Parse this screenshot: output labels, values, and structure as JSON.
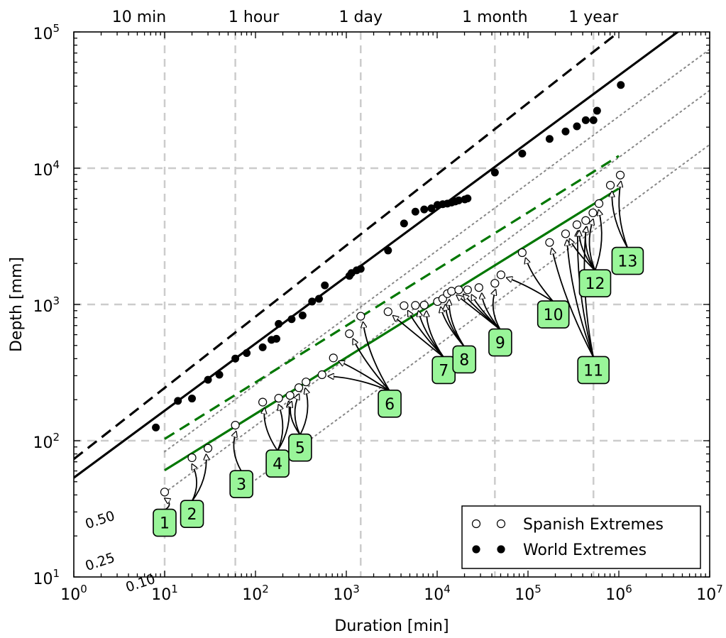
{
  "chart_data": {
    "type": "scatter",
    "xlabel": "Duration [min]",
    "ylabel": "Depth [mm]",
    "xscale": "log",
    "yscale": "log",
    "xlim": [
      1,
      10000000
    ],
    "ylim": [
      10,
      100000
    ],
    "x_ticks": [
      {
        "base": "10",
        "exp": "0"
      },
      {
        "base": "10",
        "exp": "1"
      },
      {
        "base": "10",
        "exp": "2"
      },
      {
        "base": "10",
        "exp": "3"
      },
      {
        "base": "10",
        "exp": "4"
      },
      {
        "base": "10",
        "exp": "5"
      },
      {
        "base": "10",
        "exp": "6"
      },
      {
        "base": "10",
        "exp": "7"
      }
    ],
    "y_ticks": [
      {
        "base": "10",
        "exp": "1"
      },
      {
        "base": "10",
        "exp": "2"
      },
      {
        "base": "10",
        "exp": "3"
      },
      {
        "base": "10",
        "exp": "4"
      },
      {
        "base": "10",
        "exp": "5"
      }
    ],
    "top_markers": [
      {
        "label": "10 min",
        "x": 10
      },
      {
        "label": "1 hour",
        "x": 60
      },
      {
        "label": "1 day",
        "x": 1440
      },
      {
        "label": "1 month",
        "x": 43200
      },
      {
        "label": "1 year",
        "x": 525600
      }
    ],
    "grid": "dashed at decades and duration markers",
    "legend": {
      "position": "bottom-right",
      "entries": [
        {
          "label": "Spanish Extremes",
          "marker": "open-circle"
        },
        {
          "label": "World Extremes",
          "marker": "filled-circle"
        }
      ]
    },
    "colors": {
      "world": "#000000",
      "spanish_fit": "#007700",
      "box_fill": "#99f599",
      "grid": "#cccccc",
      "ref_lines": "#888888"
    },
    "reference_lines": [
      {
        "label": "0.50",
        "fraction": 0.5
      },
      {
        "label": "0.25",
        "fraction": 0.25
      },
      {
        "label": "0.10",
        "fraction": 0.1
      }
    ],
    "fit_lines": [
      {
        "series": "World Extremes",
        "style": "solid",
        "color": "#000000",
        "x": [
          1,
          10000000
        ],
        "y": [
          53.5,
          149000
        ]
      },
      {
        "series": "World Extremes",
        "style": "dashed",
        "color": "#000000",
        "x": [
          1,
          1000000
        ],
        "y": [
          73.3,
          100000
        ]
      },
      {
        "series": "Spanish Extremes",
        "style": "solid",
        "color": "#007700",
        "x": [
          10,
          1000000
        ],
        "y": [
          60.7,
          7100
        ]
      },
      {
        "series": "Spanish Extremes",
        "style": "dashed",
        "color": "#007700",
        "x": [
          10,
          1000000
        ],
        "y": [
          103,
          12300
        ]
      }
    ],
    "series": [
      {
        "name": "World Extremes",
        "marker": "filled-circle",
        "points": [
          [
            8,
            125
          ],
          [
            14,
            196
          ],
          [
            20,
            204
          ],
          [
            30,
            280
          ],
          [
            40,
            305
          ],
          [
            60,
            401
          ],
          [
            80,
            440
          ],
          [
            120,
            485
          ],
          [
            150,
            550
          ],
          [
            170,
            560
          ],
          [
            180,
            720
          ],
          [
            250,
            780
          ],
          [
            330,
            830
          ],
          [
            420,
            1050
          ],
          [
            500,
            1100
          ],
          [
            580,
            1380
          ],
          [
            1080,
            1620
          ],
          [
            1140,
            1700
          ],
          [
            1300,
            1780
          ],
          [
            1440,
            1825
          ],
          [
            2880,
            2490
          ],
          [
            4320,
            3930
          ],
          [
            5760,
            4800
          ],
          [
            7200,
            4980
          ],
          [
            8640,
            5080
          ],
          [
            10080,
            5380
          ],
          [
            11520,
            5440
          ],
          [
            12960,
            5500
          ],
          [
            14400,
            5600
          ],
          [
            15840,
            5700
          ],
          [
            17280,
            5800
          ],
          [
            20160,
            5900
          ],
          [
            21600,
            6000
          ],
          [
            43200,
            9300
          ],
          [
            86400,
            12800
          ],
          [
            172800,
            16400
          ],
          [
            259200,
            18600
          ],
          [
            345600,
            20300
          ],
          [
            432000,
            22500
          ],
          [
            525600,
            22500
          ],
          [
            576000,
            26400
          ],
          [
            1051200,
            40800
          ]
        ]
      },
      {
        "name": "Spanish Extremes",
        "marker": "open-circle",
        "points": [
          [
            10,
            42
          ],
          [
            20,
            75
          ],
          [
            30,
            88
          ],
          [
            60,
            130
          ],
          [
            120,
            192
          ],
          [
            180,
            205
          ],
          [
            240,
            215
          ],
          [
            300,
            245
          ],
          [
            360,
            270
          ],
          [
            540,
            305
          ],
          [
            720,
            405
          ],
          [
            1080,
            610
          ],
          [
            1440,
            820
          ],
          [
            2880,
            885
          ],
          [
            4320,
            980
          ],
          [
            5760,
            985
          ],
          [
            7200,
            990
          ],
          [
            10080,
            1050
          ],
          [
            11520,
            1100
          ],
          [
            12960,
            1200
          ],
          [
            14400,
            1250
          ],
          [
            17280,
            1280
          ],
          [
            21600,
            1280
          ],
          [
            28800,
            1330
          ],
          [
            43200,
            1430
          ],
          [
            50400,
            1650
          ],
          [
            86400,
            2400
          ],
          [
            172800,
            2850
          ],
          [
            259200,
            3300
          ],
          [
            345600,
            3850
          ],
          [
            432000,
            4130
          ],
          [
            518400,
            4700
          ],
          [
            604800,
            5500
          ],
          [
            806400,
            7500
          ],
          [
            1036800,
            8900
          ]
        ]
      }
    ],
    "annotations": [
      {
        "label": "1",
        "box_at": [
          10,
          25
        ],
        "targets": [
          [
            10,
            42
          ]
        ]
      },
      {
        "label": "2",
        "box_at": [
          20,
          29
        ],
        "targets": [
          [
            20,
            75
          ],
          [
            30,
            88
          ]
        ]
      },
      {
        "label": "3",
        "box_at": [
          70,
          48
        ],
        "targets": [
          [
            60,
            130
          ]
        ]
      },
      {
        "label": "4",
        "box_at": [
          175,
          68
        ],
        "targets": [
          [
            120,
            192
          ],
          [
            180,
            205
          ],
          [
            240,
            215
          ]
        ]
      },
      {
        "label": "5",
        "box_at": [
          310,
          89
        ],
        "targets": [
          [
            240,
            215
          ],
          [
            300,
            245
          ],
          [
            360,
            270
          ]
        ]
      },
      {
        "label": "6",
        "box_at": [
          3000,
          187
        ],
        "targets": [
          [
            540,
            305
          ],
          [
            720,
            405
          ],
          [
            1080,
            610
          ],
          [
            1440,
            820
          ]
        ]
      },
      {
        "label": "7",
        "box_at": [
          11800,
          330
        ],
        "targets": [
          [
            2880,
            885
          ],
          [
            4320,
            980
          ],
          [
            5760,
            985
          ],
          [
            7200,
            990
          ]
        ]
      },
      {
        "label": "8",
        "box_at": [
          19900,
          395
        ],
        "targets": [
          [
            10080,
            1050
          ],
          [
            11520,
            1100
          ],
          [
            12960,
            1200
          ]
        ]
      },
      {
        "label": "9",
        "box_at": [
          49500,
          526
        ],
        "targets": [
          [
            14400,
            1250
          ],
          [
            17280,
            1280
          ],
          [
            21600,
            1280
          ],
          [
            28800,
            1330
          ],
          [
            43200,
            1430
          ]
        ]
      },
      {
        "label": "10",
        "box_at": [
          190000,
          845
        ],
        "targets": [
          [
            50400,
            1650
          ],
          [
            86400,
            2400
          ]
        ]
      },
      {
        "label": "11",
        "box_at": [
          525000,
          330
        ],
        "targets": [
          [
            172800,
            2850
          ],
          [
            259200,
            3300
          ],
          [
            345600,
            3850
          ],
          [
            432000,
            4130
          ]
        ]
      },
      {
        "label": "12",
        "box_at": [
          547000,
          1430
        ],
        "targets": [
          [
            259200,
            3300
          ],
          [
            345600,
            3850
          ],
          [
            432000,
            4130
          ],
          [
            518400,
            4700
          ],
          [
            604800,
            5500
          ]
        ]
      },
      {
        "label": "13",
        "box_at": [
          1250000,
          2090
        ],
        "targets": [
          [
            806400,
            7500
          ],
          [
            1036800,
            8900
          ]
        ]
      }
    ]
  }
}
